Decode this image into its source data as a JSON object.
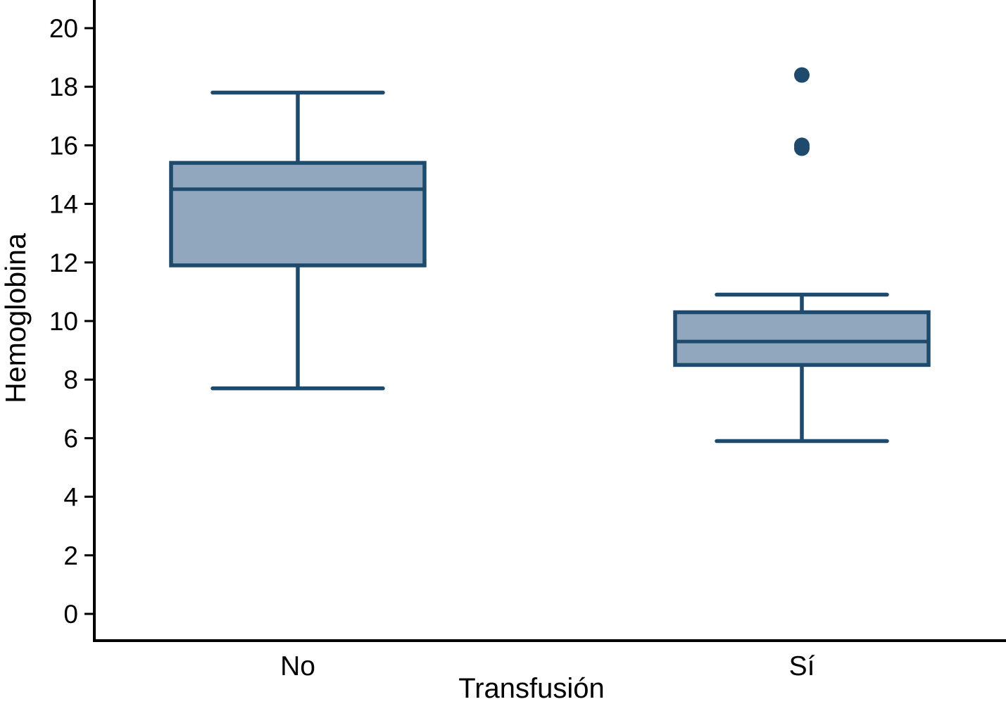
{
  "chart_data": {
    "type": "box",
    "title": "",
    "xlabel": "Transfusión",
    "ylabel": "Hemoglobina",
    "ylim": [
      0,
      20.5
    ],
    "yticks": [
      0,
      2,
      4,
      6,
      8,
      10,
      12,
      14,
      16,
      18,
      20
    ],
    "categories": [
      "No",
      "Sí"
    ],
    "series": [
      {
        "category": "No",
        "whisker_low": 7.7,
        "q1": 11.9,
        "median": 14.5,
        "q3": 15.4,
        "whisker_high": 17.8,
        "outliers": []
      },
      {
        "category": "Sí",
        "whisker_low": 5.9,
        "q1": 8.5,
        "median": 9.3,
        "q3": 10.3,
        "whisker_high": 10.9,
        "outliers": [
          15.9,
          16.0,
          18.4
        ]
      }
    ],
    "grid": false,
    "legend_position": "none",
    "colors": {
      "box_fill": "#90a7bd",
      "box_border": "#1e4a6d",
      "outlier": "#1e4a6d",
      "axis": "#000000",
      "text": "#000000"
    }
  }
}
